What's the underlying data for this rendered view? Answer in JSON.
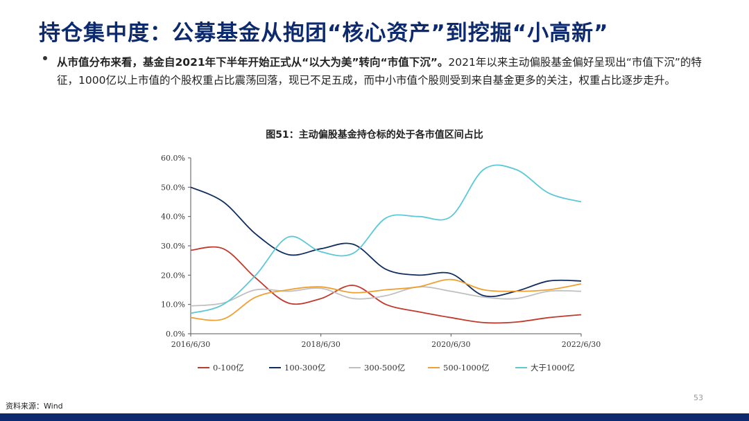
{
  "slide": {
    "title": "持仓集中度：公募基金从抱团“核心资产”到挖掘“小高新”",
    "bullet_bold": "从市值分布来看，基金自2021年下半年开始正式从“以大为美”转向“市值下沉”。",
    "bullet_rest": "2021年以来主动偏股基金偏好呈现出“市值下沉”的特征，1000亿以上市值的个股权重占比震荡回落，现已不足五成，而中小市值个股则受到来自基金更多的关注，权重占比逐步走升。",
    "source": "资料来源：Wind",
    "page_number": "53"
  },
  "chart_data": {
    "type": "line",
    "title": "图51：主动偏股基金持仓标的处于各市值区间占比",
    "x": [
      0,
      0.5,
      1,
      1.5,
      2,
      2.5,
      3,
      3.5,
      4,
      4.5,
      5,
      5.5,
      6
    ],
    "x_ticks": [
      0,
      2,
      4,
      6
    ],
    "x_tick_labels": [
      "2016/6/30",
      "2018/6/30",
      "2020/6/30",
      "2022/6/30"
    ],
    "y_ticks": [
      0,
      10,
      20,
      30,
      40,
      50,
      60
    ],
    "y_tick_labels": [
      "0.0%",
      "10.0%",
      "20.0%",
      "30.0%",
      "40.0%",
      "50.0%",
      "60.0%"
    ],
    "ylim": [
      0,
      60
    ],
    "grid": false,
    "legend_position": "bottom",
    "series": [
      {
        "name": "0-100亿",
        "color": "#c0392b",
        "values": [
          28.5,
          29.0,
          19.0,
          10.5,
          12.0,
          16.5,
          10.0,
          7.5,
          5.5,
          3.8,
          4.0,
          5.5,
          6.5
        ]
      },
      {
        "name": "100-300亿",
        "color": "#0f2d5e",
        "values": [
          50.0,
          45.0,
          34.0,
          27.0,
          29.0,
          30.5,
          22.0,
          20.0,
          20.5,
          13.0,
          14.5,
          18.0,
          18.0
        ]
      },
      {
        "name": "300-500亿",
        "color": "#bfbfbf",
        "values": [
          9.5,
          10.5,
          15.0,
          14.5,
          15.5,
          12.0,
          13.0,
          16.0,
          14.5,
          12.5,
          12.0,
          14.5,
          14.5
        ]
      },
      {
        "name": "500-1000亿",
        "color": "#f0a030",
        "values": [
          5.5,
          5.0,
          12.5,
          15.0,
          16.0,
          14.0,
          15.0,
          16.0,
          18.5,
          15.0,
          14.5,
          15.0,
          17.0
        ]
      },
      {
        "name": "大于1000亿",
        "color": "#5bc8d6",
        "values": [
          7.0,
          10.0,
          20.0,
          33.0,
          28.0,
          27.5,
          39.5,
          40.0,
          40.0,
          56.0,
          56.0,
          48.0,
          45.0
        ]
      }
    ]
  }
}
